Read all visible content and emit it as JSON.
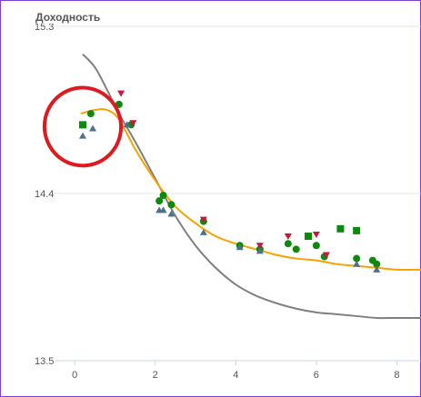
{
  "chart_data": {
    "type": "scatter",
    "title": "Доходность",
    "xlabel": "",
    "ylabel": "",
    "xlim": [
      -0.5,
      8.6
    ],
    "ylim": [
      13.5,
      15.3
    ],
    "x_ticks": [
      0,
      2,
      4,
      6,
      8
    ],
    "y_ticks": [
      13.5,
      14.4,
      15.3
    ],
    "y_tick_labels": [
      "13.5",
      "14.4",
      "15.3"
    ],
    "grid": "horizontal",
    "legend": "none",
    "colors": {
      "grid": "#e6e6e6",
      "axis": "#ccd6eb",
      "gray_curve": "#808080",
      "orange_curve": "#f5a300",
      "circle": "#0d8a0d",
      "square": "#0d8a0d",
      "triangle_down": "#c4183c",
      "triangle_up": "#4f6f8f",
      "highlight_ring": "#e0191f"
    },
    "lines": [
      {
        "color_key": "gray_curve",
        "points": [
          [
            0.2,
            15.15
          ],
          [
            0.5,
            15.08
          ],
          [
            0.8,
            14.96
          ],
          [
            1.1,
            14.83
          ],
          [
            1.5,
            14.68
          ],
          [
            2.0,
            14.48
          ],
          [
            2.5,
            14.28
          ],
          [
            3.0,
            14.12
          ],
          [
            3.5,
            14.0
          ],
          [
            4.0,
            13.91
          ],
          [
            4.5,
            13.85
          ],
          [
            5.0,
            13.81
          ],
          [
            5.5,
            13.78
          ],
          [
            6.0,
            13.76
          ],
          [
            6.5,
            13.75
          ],
          [
            7.0,
            13.74
          ],
          [
            7.5,
            13.73
          ],
          [
            8.0,
            13.73
          ],
          [
            8.6,
            13.73
          ]
        ]
      },
      {
        "color_key": "orange_curve",
        "points": [
          [
            0.15,
            14.83
          ],
          [
            0.5,
            14.85
          ],
          [
            0.8,
            14.85
          ],
          [
            1.1,
            14.8
          ],
          [
            1.5,
            14.64
          ],
          [
            2.0,
            14.47
          ],
          [
            2.5,
            14.33
          ],
          [
            3.0,
            14.24
          ],
          [
            3.5,
            14.17
          ],
          [
            4.0,
            14.13
          ],
          [
            4.5,
            14.1
          ],
          [
            5.0,
            14.07
          ],
          [
            5.5,
            14.05
          ],
          [
            6.0,
            14.04
          ],
          [
            6.5,
            14.02
          ],
          [
            7.0,
            14.01
          ],
          [
            7.5,
            14.0
          ],
          [
            8.0,
            13.99
          ],
          [
            8.6,
            13.99
          ]
        ]
      }
    ],
    "series": [
      {
        "marker": "circle",
        "color_key": "circle",
        "points": [
          [
            0.4,
            14.83
          ],
          [
            1.1,
            14.88
          ],
          [
            1.4,
            14.77
          ],
          [
            2.1,
            14.36
          ],
          [
            2.2,
            14.39
          ],
          [
            2.4,
            14.34
          ],
          [
            3.2,
            14.25
          ],
          [
            4.1,
            14.12
          ],
          [
            4.6,
            14.1
          ],
          [
            5.3,
            14.13
          ],
          [
            5.5,
            14.1
          ],
          [
            6.0,
            14.12
          ],
          [
            6.2,
            14.06
          ],
          [
            7.0,
            14.05
          ],
          [
            7.4,
            14.04
          ],
          [
            7.5,
            14.02
          ]
        ]
      },
      {
        "marker": "square",
        "color_key": "square",
        "points": [
          [
            0.2,
            14.77
          ],
          [
            5.8,
            14.17
          ],
          [
            6.6,
            14.21
          ],
          [
            7.0,
            14.2
          ]
        ]
      },
      {
        "marker": "triangle-down",
        "color_key": "triangle_down",
        "points": [
          [
            1.15,
            14.94
          ],
          [
            1.45,
            14.78
          ],
          [
            3.2,
            14.26
          ],
          [
            4.6,
            14.12
          ],
          [
            5.3,
            14.17
          ],
          [
            6.0,
            14.18
          ],
          [
            6.25,
            14.07
          ]
        ]
      },
      {
        "marker": "triangle-up",
        "color_key": "triangle_up",
        "points": [
          [
            0.2,
            14.71
          ],
          [
            0.45,
            14.75
          ],
          [
            1.3,
            14.77
          ],
          [
            2.1,
            14.31
          ],
          [
            2.2,
            14.31
          ],
          [
            2.4,
            14.29
          ],
          [
            3.2,
            14.19
          ],
          [
            4.1,
            14.11
          ],
          [
            4.6,
            14.09
          ],
          [
            7.0,
            14.02
          ],
          [
            7.5,
            13.99
          ]
        ]
      }
    ],
    "annotations": [
      {
        "type": "ellipse",
        "color_key": "highlight_ring",
        "center": [
          0.2,
          14.76
        ],
        "radius_data": [
          0.95,
          0.21
        ]
      }
    ]
  }
}
